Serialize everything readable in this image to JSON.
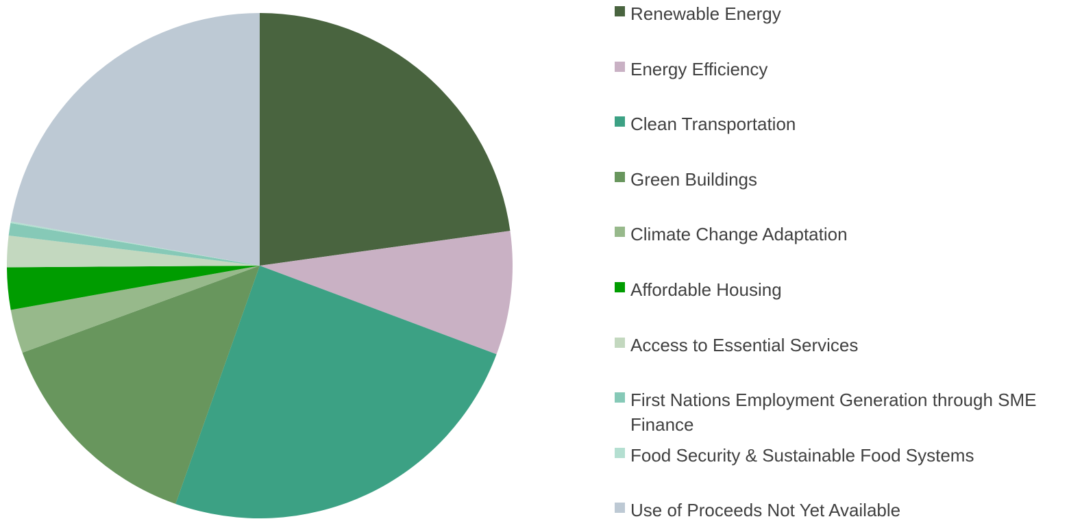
{
  "chart_data": {
    "type": "pie",
    "categories": [
      "Renewable Energy",
      "Energy Efficiency",
      "Clean Transportation",
      "Green Buildings",
      "Climate Change Adaptation",
      "Affordable Housing",
      "Access to Essential Services",
      "First Nations Employment Generation through SME Finance",
      "Food Security & Sustainable Food Systems",
      "Use of Proceeds Not Yet Available"
    ],
    "values": [
      22.8,
      7.9,
      24.7,
      14.0,
      2.8,
      2.7,
      2.0,
      0.8,
      0.1,
      22.2
    ],
    "colors": [
      "#49643f",
      "#c9b1c4",
      "#3ca184",
      "#68965d",
      "#97b98b",
      "#009c00",
      "#c3d8bf",
      "#86c9b7",
      "#b4dfd1",
      "#bdc9d4"
    ],
    "legend": "right"
  }
}
